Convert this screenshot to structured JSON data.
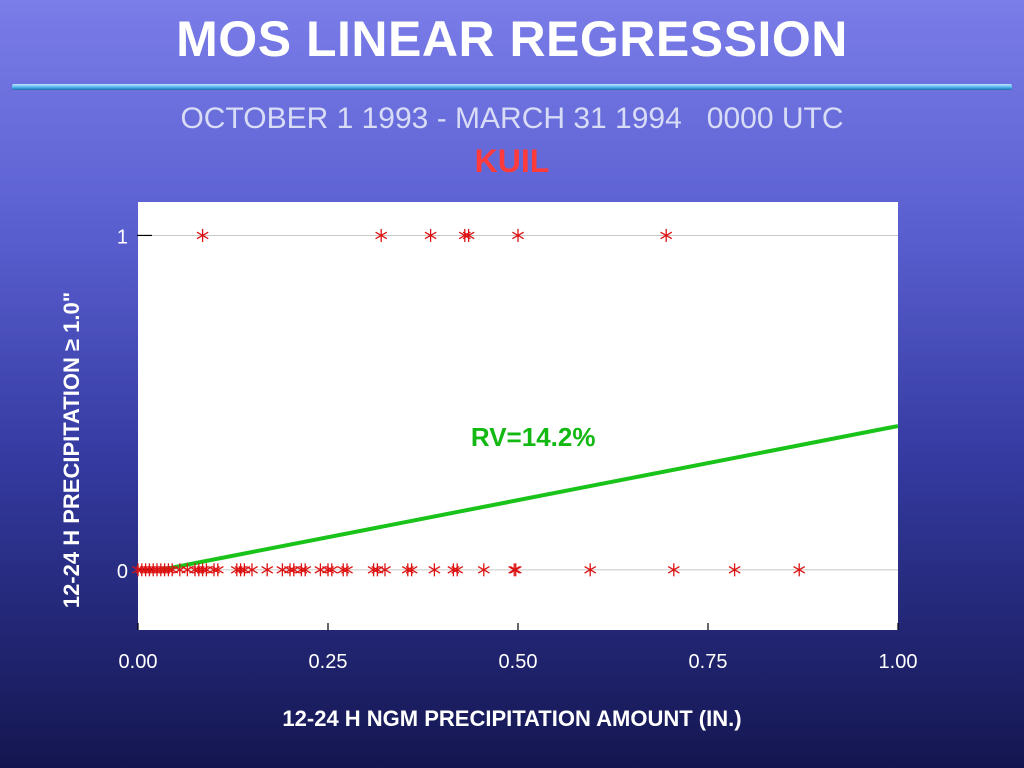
{
  "title": "MOS LINEAR REGRESSION",
  "subtitle": "OCTOBER 1 1993 - MARCH 31 1994   0000 UTC",
  "station": "KUIL",
  "colors": {
    "points": "#dd1111",
    "line": "#19c319",
    "annotation": "#13b813",
    "station": "#ff3b3b"
  },
  "chart_data": {
    "type": "scatter",
    "xlabel": "12-24 H NGM PRECIPITATION AMOUNT (IN.)",
    "ylabel": "12-24 H PRECIPITATION ≥ 1.0\"",
    "xlim": [
      0,
      1
    ],
    "ylim": [
      -0.18,
      1.1
    ],
    "x_ticks": [
      "0.00",
      "0.25",
      "0.50",
      "0.75",
      "1.00"
    ],
    "y_ticks": [
      "0",
      "1"
    ],
    "grid": "horizontal at 0 and 1",
    "series": [
      {
        "marker": "asterisk",
        "points": [
          [
            0.085,
            1
          ],
          [
            0.32,
            1
          ],
          [
            0.385,
            1
          ],
          [
            0.43,
            1
          ],
          [
            0.435,
            1
          ],
          [
            0.5,
            1
          ],
          [
            0.695,
            1
          ],
          [
            0.0,
            0
          ],
          [
            0.005,
            0
          ],
          [
            0.01,
            0
          ],
          [
            0.015,
            0
          ],
          [
            0.02,
            0
          ],
          [
            0.025,
            0
          ],
          [
            0.03,
            0
          ],
          [
            0.035,
            0
          ],
          [
            0.04,
            0
          ],
          [
            0.045,
            0
          ],
          [
            0.055,
            0
          ],
          [
            0.065,
            0
          ],
          [
            0.075,
            0
          ],
          [
            0.08,
            0
          ],
          [
            0.085,
            0
          ],
          [
            0.09,
            0
          ],
          [
            0.1,
            0
          ],
          [
            0.105,
            0
          ],
          [
            0.13,
            0
          ],
          [
            0.135,
            0
          ],
          [
            0.14,
            0
          ],
          [
            0.15,
            0
          ],
          [
            0.17,
            0
          ],
          [
            0.19,
            0
          ],
          [
            0.2,
            0
          ],
          [
            0.205,
            0
          ],
          [
            0.215,
            0
          ],
          [
            0.22,
            0
          ],
          [
            0.24,
            0
          ],
          [
            0.25,
            0
          ],
          [
            0.255,
            0
          ],
          [
            0.27,
            0
          ],
          [
            0.275,
            0
          ],
          [
            0.31,
            0
          ],
          [
            0.315,
            0
          ],
          [
            0.325,
            0
          ],
          [
            0.355,
            0
          ],
          [
            0.36,
            0
          ],
          [
            0.39,
            0
          ],
          [
            0.415,
            0
          ],
          [
            0.42,
            0
          ],
          [
            0.455,
            0
          ],
          [
            0.495,
            0
          ],
          [
            0.497,
            0
          ],
          [
            0.595,
            0
          ],
          [
            0.705,
            0
          ],
          [
            0.785,
            0
          ],
          [
            0.87,
            0
          ]
        ]
      }
    ],
    "regression_line": {
      "x": [
        0.03,
        1.0
      ],
      "y": [
        0.0,
        0.43
      ]
    },
    "annotation": "RV=14.2%"
  }
}
